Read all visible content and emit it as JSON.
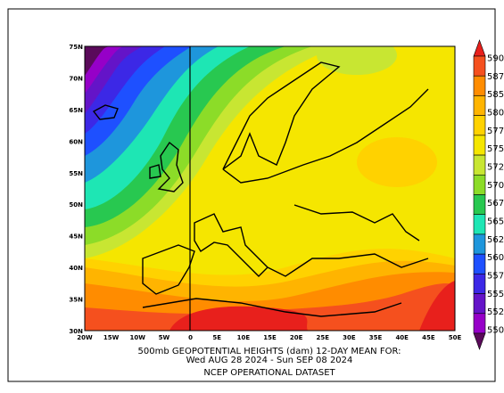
{
  "map": {
    "lat_labels": [
      "75N",
      "70N",
      "65N",
      "60N",
      "55N",
      "50N",
      "45N",
      "40N",
      "35N",
      "30N"
    ],
    "lon_labels": [
      "20W",
      "15W",
      "10W",
      "5W",
      "0",
      "5E",
      "10E",
      "15E",
      "20E",
      "25E",
      "30E",
      "35E",
      "40E",
      "45E",
      "50E"
    ]
  },
  "colorbar": {
    "labels": [
      "590",
      "587.",
      "585",
      "580",
      "577.",
      "575",
      "572.",
      "570",
      "567.",
      "565",
      "562.",
      "560",
      "557.",
      "555",
      "552.",
      "550"
    ],
    "colors": [
      "#e8201c",
      "#f5501e",
      "#ff8c00",
      "#ffb400",
      "#ffd200",
      "#f5e600",
      "#c8e632",
      "#8cdc28",
      "#28c850",
      "#1ee6b4",
      "#1e96dc",
      "#1e50ff",
      "#3c28e6",
      "#6414c8",
      "#9600c8",
      "#5a0a5a"
    ]
  },
  "caption": {
    "line1": "500mb GEOPOTENTIAL HEIGHTS (dam)    12-DAY MEAN FOR:",
    "line2": "Wed AUG 28 2024 - Sun SEP 08 2024",
    "line3": "NCEP OPERATIONAL DATASET"
  }
}
